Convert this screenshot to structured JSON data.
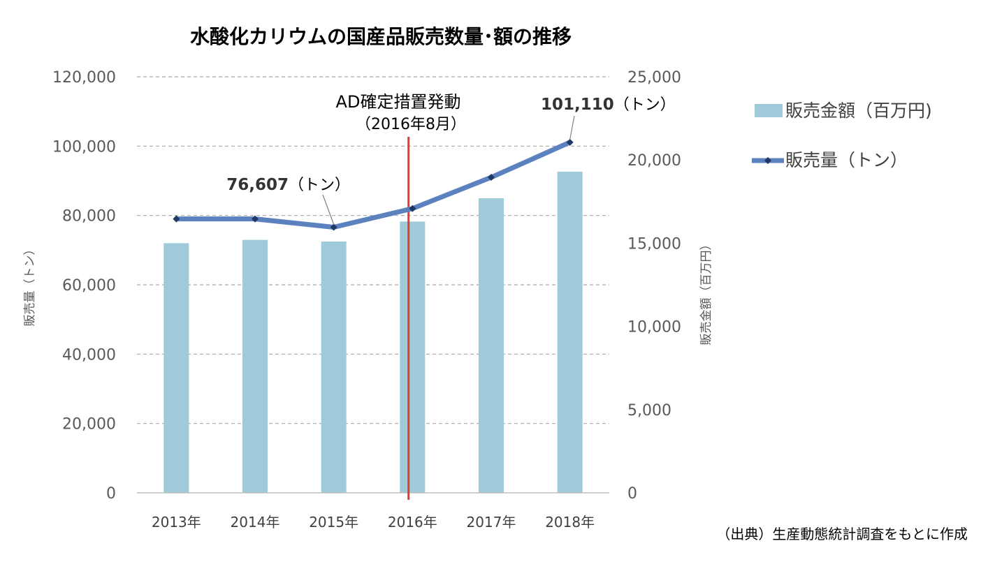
{
  "chart_data": {
    "type": "bar",
    "title": "水酸化カリウムの国産品販売数量･額の推移",
    "categories": [
      "2013年",
      "2014年",
      "2015年",
      "2016年",
      "2017年",
      "2018年"
    ],
    "series": [
      {
        "name": "販売金額（百万円)",
        "type": "bar",
        "axis": "right",
        "values": [
          15000,
          15200,
          15100,
          16300,
          17700,
          19300
        ]
      },
      {
        "name": "販売量（トン）",
        "type": "line",
        "axis": "left",
        "values": [
          79000,
          79000,
          76607,
          82000,
          91000,
          101110
        ]
      }
    ],
    "ylabel_left": "販売量（トン）",
    "ylabel_right": "販売金額（百万円）",
    "ylim_left": [
      0,
      120000
    ],
    "ylim_right": [
      0,
      25000
    ],
    "yticks_left": [
      "0",
      "20,000",
      "40,000",
      "60,000",
      "80,000",
      "100,000",
      "120,000"
    ],
    "yticks_right": [
      "0",
      "5,000",
      "10,000",
      "15,000",
      "20,000",
      "25,000"
    ],
    "grid": true,
    "legend_position": "right",
    "annotations": {
      "ad_label": "AD確定措置発動",
      "ad_date": "（2016年8月）",
      "ad_x": 3.45,
      "point_2015_value": "76,607",
      "point_2015_unit": "（トン）",
      "point_2018_value": "101,110",
      "point_2018_unit": "（トン）"
    },
    "source_note": "（出典）生産動態統計調査をもとに作成",
    "colors": {
      "bar": "#9ECAD9",
      "line": "#5B82BE",
      "marker": "#1F3864",
      "grid": "#A6A6A6",
      "ad_line": "#E03C31"
    }
  }
}
